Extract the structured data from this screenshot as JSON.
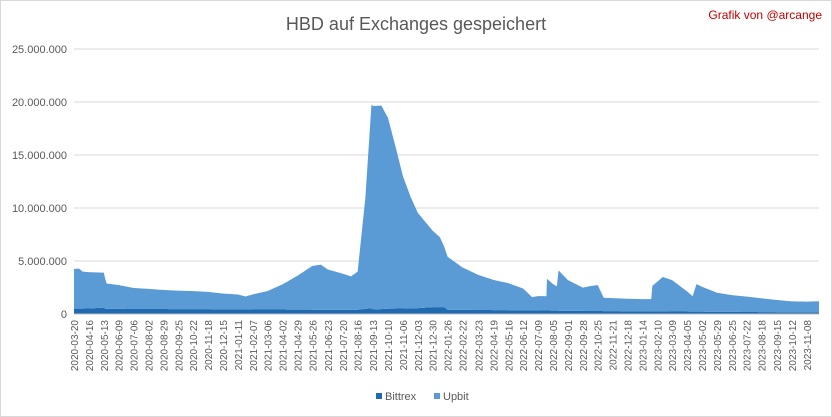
{
  "chart_data": {
    "type": "area",
    "stacked": true,
    "title": "HBD auf Exchanges gespeichert",
    "credit": "Grafik von @arcange",
    "xlabel": "",
    "ylabel": "",
    "ylim": [
      0,
      25000000
    ],
    "y_ticks": [
      "0",
      "5.000.000",
      "10.000.000",
      "15.000.000",
      "20.000.000",
      "25.000.000"
    ],
    "y_tick_values": [
      0,
      5000000,
      10000000,
      15000000,
      20000000,
      25000000
    ],
    "grid": true,
    "legend_position": "bottom",
    "x_ticks": [
      "2020-03-20",
      "2020-04-16",
      "2020-05-13",
      "2020-06-09",
      "2020-07-06",
      "2020-08-02",
      "2020-08-29",
      "2020-09-25",
      "2020-10-22",
      "2020-11-18",
      "2020-12-15",
      "2021-01-11",
      "2021-02-07",
      "2021-03-06",
      "2021-04-02",
      "2021-04-29",
      "2021-05-26",
      "2021-06-23",
      "2021-07-20",
      "2021-08-16",
      "2021-09-13",
      "2021-10-10",
      "2021-11-06",
      "2021-12-03",
      "2021-12-30",
      "2022-01-26",
      "2022-02-22",
      "2022-03-23",
      "2022-04-19",
      "2022-05-16",
      "2022-06-12",
      "2022-07-09",
      "2022-08-05",
      "2022-09-01",
      "2022-09-28",
      "2022-10-25",
      "2022-11-21",
      "2022-12-18",
      "2023-01-14",
      "2023-02-10",
      "2023-03-09",
      "2023-04-05",
      "2023-05-02",
      "2023-05-29",
      "2023-06-25",
      "2023-07-22",
      "2023-08-18",
      "2023-09-15",
      "2023-10-12",
      "2023-11-08"
    ],
    "x_range": [
      "2020-03-20",
      "2023-11-30"
    ],
    "series": [
      {
        "name": "Bittrex",
        "color": "#1f6ab0",
        "points": [
          [
            "2020-03-20",
            500000
          ],
          [
            "2020-04-16",
            520000
          ],
          [
            "2020-05-13",
            600000
          ],
          [
            "2020-05-16",
            480000
          ],
          [
            "2020-06-09",
            480000
          ],
          [
            "2020-08-02",
            470000
          ],
          [
            "2020-10-22",
            460000
          ],
          [
            "2020-12-15",
            450000
          ],
          [
            "2021-01-11",
            440000
          ],
          [
            "2021-02-07",
            430000
          ],
          [
            "2021-04-02",
            420000
          ],
          [
            "2021-06-23",
            400000
          ],
          [
            "2021-08-16",
            400000
          ],
          [
            "2021-09-10",
            550000
          ],
          [
            "2021-09-13",
            420000
          ],
          [
            "2021-10-10",
            500000
          ],
          [
            "2021-12-03",
            550000
          ],
          [
            "2021-12-30",
            650000
          ],
          [
            "2022-01-20",
            650000
          ],
          [
            "2022-01-26",
            400000
          ],
          [
            "2022-03-23",
            380000
          ],
          [
            "2022-05-16",
            360000
          ],
          [
            "2022-07-09",
            340000
          ],
          [
            "2022-08-05",
            320000
          ],
          [
            "2022-09-01",
            300000
          ],
          [
            "2022-10-25",
            280000
          ],
          [
            "2022-12-18",
            260000
          ],
          [
            "2023-02-10",
            250000
          ],
          [
            "2023-04-05",
            230000
          ],
          [
            "2023-05-29",
            210000
          ],
          [
            "2023-07-22",
            190000
          ],
          [
            "2023-09-15",
            170000
          ],
          [
            "2023-11-08",
            150000
          ],
          [
            "2023-11-30",
            150000
          ]
        ]
      },
      {
        "name": "Upbit",
        "color": "#5b9bd5",
        "points": [
          [
            "2020-03-20",
            3750000
          ],
          [
            "2020-03-29",
            3780000
          ],
          [
            "2020-04-05",
            3480000
          ],
          [
            "2020-05-13",
            3300000
          ],
          [
            "2020-05-18",
            2400000
          ],
          [
            "2020-06-09",
            2250000
          ],
          [
            "2020-07-06",
            1980000
          ],
          [
            "2020-08-02",
            1900000
          ],
          [
            "2020-08-29",
            1800000
          ],
          [
            "2020-09-25",
            1740000
          ],
          [
            "2020-10-22",
            1700000
          ],
          [
            "2020-11-18",
            1630000
          ],
          [
            "2020-12-15",
            1480000
          ],
          [
            "2021-01-11",
            1400000
          ],
          [
            "2021-01-25",
            1220000
          ],
          [
            "2021-02-07",
            1420000
          ],
          [
            "2021-03-06",
            1750000
          ],
          [
            "2021-04-02",
            2380000
          ],
          [
            "2021-04-29",
            3200000
          ],
          [
            "2021-05-26",
            4130000
          ],
          [
            "2021-06-10",
            4250000
          ],
          [
            "2021-06-23",
            3800000
          ],
          [
            "2021-07-20",
            3400000
          ],
          [
            "2021-08-04",
            3150000
          ],
          [
            "2021-08-16",
            3600000
          ],
          [
            "2021-08-30",
            10500000
          ],
          [
            "2021-09-10",
            19200000
          ],
          [
            "2021-09-28",
            19200000
          ],
          [
            "2021-10-10",
            18000000
          ],
          [
            "2021-10-25",
            15000000
          ],
          [
            "2021-11-06",
            12500000
          ],
          [
            "2021-11-20",
            10500000
          ],
          [
            "2021-12-03",
            9000000
          ],
          [
            "2021-12-30",
            7200000
          ],
          [
            "2022-01-12",
            6600000
          ],
          [
            "2022-01-26",
            5000000
          ],
          [
            "2022-02-22",
            4000000
          ],
          [
            "2022-03-23",
            3300000
          ],
          [
            "2022-04-19",
            2850000
          ],
          [
            "2022-05-16",
            2550000
          ],
          [
            "2022-06-12",
            2050000
          ],
          [
            "2022-06-28",
            1250000
          ],
          [
            "2022-07-09",
            1350000
          ],
          [
            "2022-07-24",
            1350000
          ],
          [
            "2022-07-25",
            3000000
          ],
          [
            "2022-08-05",
            2500000
          ],
          [
            "2022-08-12",
            2300000
          ],
          [
            "2022-08-15",
            3800000
          ],
          [
            "2022-09-01",
            2900000
          ],
          [
            "2022-09-28",
            2200000
          ],
          [
            "2022-10-12",
            2350000
          ],
          [
            "2022-10-25",
            2450000
          ],
          [
            "2022-11-05",
            1250000
          ],
          [
            "2022-11-21",
            1230000
          ],
          [
            "2022-12-18",
            1180000
          ],
          [
            "2023-01-14",
            1150000
          ],
          [
            "2023-01-30",
            1150000
          ],
          [
            "2023-02-01",
            2400000
          ],
          [
            "2023-02-10",
            2800000
          ],
          [
            "2023-02-20",
            3250000
          ],
          [
            "2023-03-09",
            2950000
          ],
          [
            "2023-04-05",
            1900000
          ],
          [
            "2023-04-15",
            1450000
          ],
          [
            "2023-04-22",
            2600000
          ],
          [
            "2023-05-02",
            2350000
          ],
          [
            "2023-05-29",
            1800000
          ],
          [
            "2023-06-25",
            1580000
          ],
          [
            "2023-07-22",
            1450000
          ],
          [
            "2023-08-18",
            1300000
          ],
          [
            "2023-09-15",
            1150000
          ],
          [
            "2023-10-12",
            1030000
          ],
          [
            "2023-11-08",
            1020000
          ],
          [
            "2023-11-30",
            1050000
          ]
        ]
      }
    ]
  }
}
